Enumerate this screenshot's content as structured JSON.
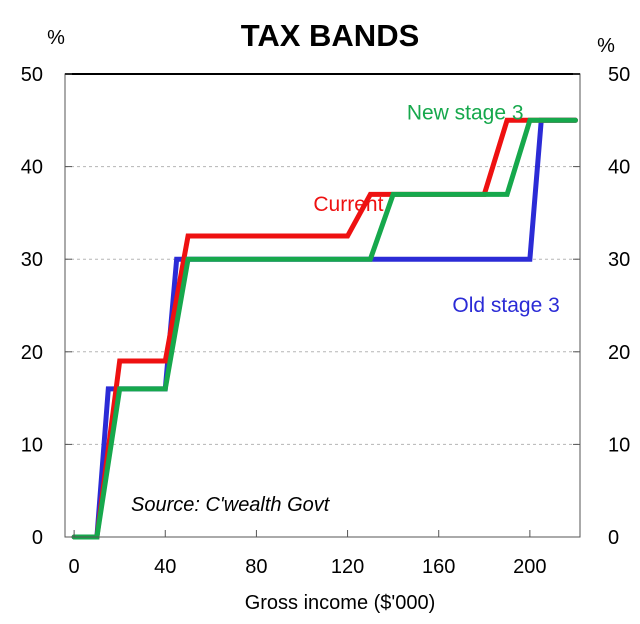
{
  "chart_data": {
    "type": "line",
    "title": "TAX BANDS",
    "xlabel": "Gross income ($'000)",
    "ylabel_left": "%",
    "ylabel_right": "%",
    "xlim": [
      -4,
      222
    ],
    "ylim": [
      0,
      50
    ],
    "x_ticks": [
      0,
      40,
      80,
      120,
      160,
      200
    ],
    "y_ticks": [
      0,
      10,
      20,
      30,
      40,
      50
    ],
    "grid": true,
    "source": "Source: C'wealth Govt",
    "series": [
      {
        "name": "Old stage 3",
        "color": "#2b2bd6",
        "points": [
          [
            0,
            0
          ],
          [
            10,
            0
          ],
          [
            15,
            16
          ],
          [
            40,
            16
          ],
          [
            45,
            30
          ],
          [
            200,
            30
          ],
          [
            205,
            45
          ],
          [
            220,
            45
          ]
        ]
      },
      {
        "name": "Current",
        "color": "#ee1111",
        "points": [
          [
            0,
            0
          ],
          [
            10,
            0
          ],
          [
            20,
            19
          ],
          [
            40,
            19
          ],
          [
            50,
            32.5
          ],
          [
            120,
            32.5
          ],
          [
            130,
            37
          ],
          [
            180,
            37
          ],
          [
            190,
            45
          ],
          [
            220,
            45
          ]
        ]
      },
      {
        "name": "New stage 3",
        "color": "#16a84c",
        "points": [
          [
            0,
            0
          ],
          [
            10,
            0
          ],
          [
            20,
            16
          ],
          [
            40,
            16
          ],
          [
            50,
            30
          ],
          [
            130,
            30
          ],
          [
            140,
            37
          ],
          [
            190,
            37
          ],
          [
            200,
            45
          ],
          [
            220,
            45
          ]
        ]
      }
    ],
    "labels": [
      {
        "series": "Current",
        "text": "Current",
        "x": 105,
        "y": 35.2
      },
      {
        "series": "New stage 3",
        "text": "New stage 3",
        "x": 146,
        "y": 45.1
      },
      {
        "series": "Old stage 3",
        "text": "Old stage 3",
        "x": 166,
        "y": 24.3
      }
    ]
  }
}
